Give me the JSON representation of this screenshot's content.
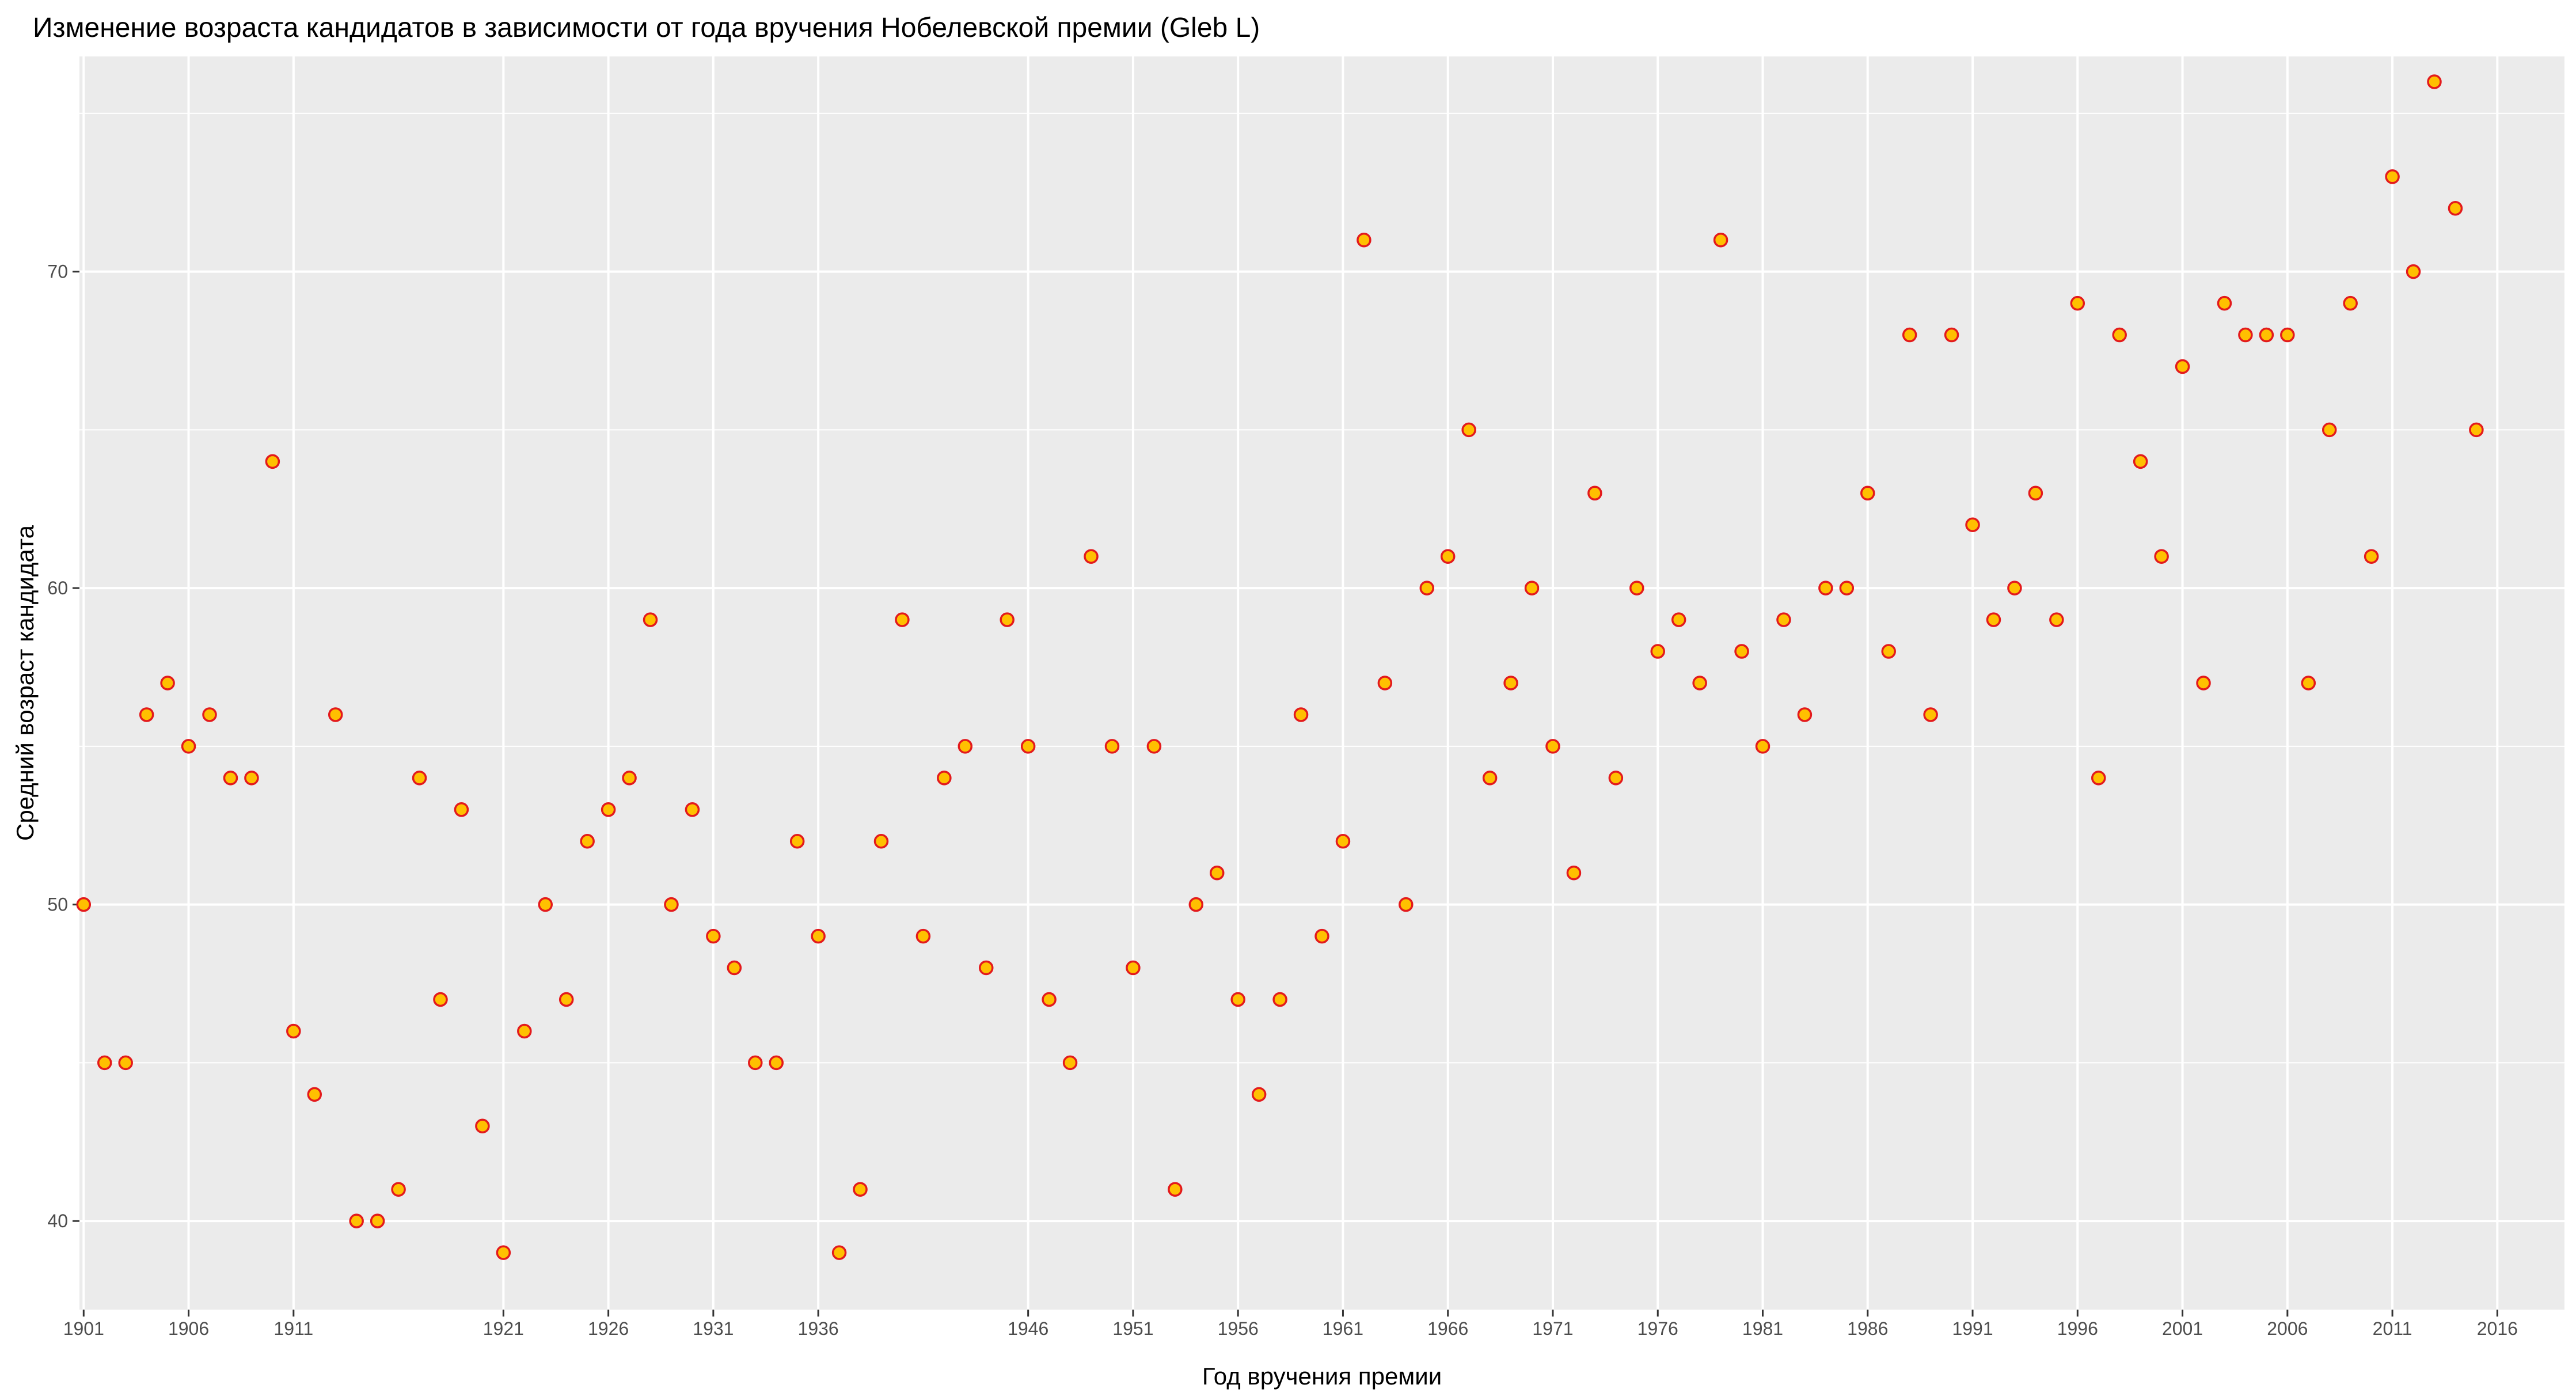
{
  "chart_data": {
    "type": "scatter",
    "title": "Изменение возраста кандидатов в зависимости от года вручения Нобелевской премии (Gleb L)",
    "xlabel": "Год вручения премии",
    "ylabel": "Средний возраст кандидата",
    "x_tick_labels": [
      "1901",
      "1906",
      "1911",
      "1921",
      "1926",
      "1931",
      "1936",
      "1946",
      "1951",
      "1956",
      "1961",
      "1966",
      "1971",
      "1976",
      "1981",
      "1986",
      "1991",
      "1996",
      "2001",
      "2006",
      "2011",
      "2016"
    ],
    "y_ticks": [
      40,
      50,
      60,
      70
    ],
    "xlim": [
      1900.8,
      2019.2
    ],
    "ylim": [
      37.2,
      76.8
    ],
    "grid": true,
    "point_fill": "#ffc000",
    "point_stroke": "#e31a1c",
    "panel_background": "#ebebeb",
    "points": [
      {
        "x": 1901,
        "y": 50
      },
      {
        "x": 1902,
        "y": 45
      },
      {
        "x": 1903,
        "y": 45
      },
      {
        "x": 1904,
        "y": 56
      },
      {
        "x": 1905,
        "y": 57
      },
      {
        "x": 1906,
        "y": 55
      },
      {
        "x": 1907,
        "y": 56
      },
      {
        "x": 1908,
        "y": 54
      },
      {
        "x": 1909,
        "y": 54
      },
      {
        "x": 1910,
        "y": 64
      },
      {
        "x": 1911,
        "y": 46
      },
      {
        "x": 1912,
        "y": 44
      },
      {
        "x": 1913,
        "y": 56
      },
      {
        "x": 1914,
        "y": 40
      },
      {
        "x": 1915,
        "y": 40
      },
      {
        "x": 1916,
        "y": 41
      },
      {
        "x": 1917,
        "y": 54
      },
      {
        "x": 1918,
        "y": 47
      },
      {
        "x": 1919,
        "y": 53
      },
      {
        "x": 1920,
        "y": 43
      },
      {
        "x": 1921,
        "y": 39
      },
      {
        "x": 1922,
        "y": 46
      },
      {
        "x": 1923,
        "y": 50
      },
      {
        "x": 1924,
        "y": 47
      },
      {
        "x": 1925,
        "y": 52
      },
      {
        "x": 1926,
        "y": 53
      },
      {
        "x": 1927,
        "y": 54
      },
      {
        "x": 1928,
        "y": 59
      },
      {
        "x": 1929,
        "y": 50
      },
      {
        "x": 1930,
        "y": 53
      },
      {
        "x": 1931,
        "y": 49
      },
      {
        "x": 1932,
        "y": 48
      },
      {
        "x": 1933,
        "y": 45
      },
      {
        "x": 1934,
        "y": 45
      },
      {
        "x": 1935,
        "y": 52
      },
      {
        "x": 1936,
        "y": 49
      },
      {
        "x": 1937,
        "y": 39
      },
      {
        "x": 1938,
        "y": 41
      },
      {
        "x": 1939,
        "y": 52
      },
      {
        "x": 1940,
        "y": 59
      },
      {
        "x": 1941,
        "y": 49
      },
      {
        "x": 1942,
        "y": 54
      },
      {
        "x": 1943,
        "y": 55
      },
      {
        "x": 1944,
        "y": 48
      },
      {
        "x": 1945,
        "y": 59
      },
      {
        "x": 1946,
        "y": 55
      },
      {
        "x": 1947,
        "y": 47
      },
      {
        "x": 1948,
        "y": 45
      },
      {
        "x": 1949,
        "y": 61
      },
      {
        "x": 1950,
        "y": 55
      },
      {
        "x": 1951,
        "y": 48
      },
      {
        "x": 1952,
        "y": 55
      },
      {
        "x": 1953,
        "y": 41
      },
      {
        "x": 1954,
        "y": 50
      },
      {
        "x": 1955,
        "y": 51
      },
      {
        "x": 1956,
        "y": 47
      },
      {
        "x": 1957,
        "y": 44
      },
      {
        "x": 1958,
        "y": 47
      },
      {
        "x": 1959,
        "y": 56
      },
      {
        "x": 1960,
        "y": 49
      },
      {
        "x": 1961,
        "y": 52
      },
      {
        "x": 1962,
        "y": 71
      },
      {
        "x": 1963,
        "y": 57
      },
      {
        "x": 1964,
        "y": 50
      },
      {
        "x": 1965,
        "y": 60
      },
      {
        "x": 1966,
        "y": 61
      },
      {
        "x": 1967,
        "y": 65
      },
      {
        "x": 1968,
        "y": 54
      },
      {
        "x": 1969,
        "y": 57
      },
      {
        "x": 1970,
        "y": 60
      },
      {
        "x": 1971,
        "y": 55
      },
      {
        "x": 1972,
        "y": 51
      },
      {
        "x": 1973,
        "y": 63
      },
      {
        "x": 1974,
        "y": 54
      },
      {
        "x": 1975,
        "y": 60
      },
      {
        "x": 1976,
        "y": 58
      },
      {
        "x": 1977,
        "y": 59
      },
      {
        "x": 1978,
        "y": 57
      },
      {
        "x": 1979,
        "y": 71
      },
      {
        "x": 1980,
        "y": 58
      },
      {
        "x": 1981,
        "y": 55
      },
      {
        "x": 1982,
        "y": 59
      },
      {
        "x": 1983,
        "y": 56
      },
      {
        "x": 1984,
        "y": 60
      },
      {
        "x": 1985,
        "y": 60
      },
      {
        "x": 1986,
        "y": 63
      },
      {
        "x": 1987,
        "y": 58
      },
      {
        "x": 1988,
        "y": 68
      },
      {
        "x": 1989,
        "y": 56
      },
      {
        "x": 1990,
        "y": 68
      },
      {
        "x": 1991,
        "y": 62
      },
      {
        "x": 1992,
        "y": 59
      },
      {
        "x": 1993,
        "y": 60
      },
      {
        "x": 1994,
        "y": 63
      },
      {
        "x": 1995,
        "y": 59
      },
      {
        "x": 1996,
        "y": 69
      },
      {
        "x": 1997,
        "y": 54
      },
      {
        "x": 1998,
        "y": 68
      },
      {
        "x": 1999,
        "y": 64
      },
      {
        "x": 2000,
        "y": 61
      },
      {
        "x": 2001,
        "y": 67
      },
      {
        "x": 2002,
        "y": 57
      },
      {
        "x": 2003,
        "y": 69
      },
      {
        "x": 2004,
        "y": 68
      },
      {
        "x": 2005,
        "y": 68
      },
      {
        "x": 2006,
        "y": 68
      },
      {
        "x": 2007,
        "y": 57
      },
      {
        "x": 2008,
        "y": 65
      },
      {
        "x": 2009,
        "y": 69
      },
      {
        "x": 2010,
        "y": 61
      },
      {
        "x": 2011,
        "y": 73
      },
      {
        "x": 2012,
        "y": 70
      },
      {
        "x": 2013,
        "y": 76
      },
      {
        "x": 2014,
        "y": 72
      },
      {
        "x": 2015,
        "y": 65
      }
    ]
  }
}
